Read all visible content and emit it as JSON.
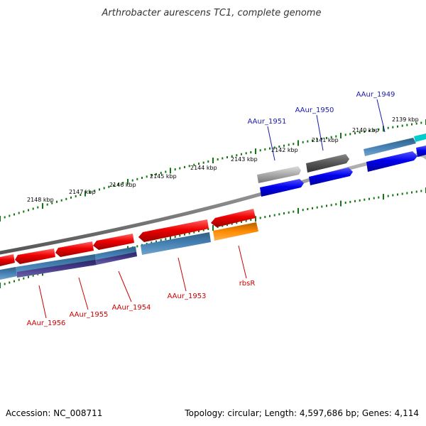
{
  "title": "Arthrobacter aurescens TC1, complete genome",
  "footer": {
    "accession": "Accession: NC_008711",
    "topology": "Topology: circular; Length: 4,597,686 bp; Genes: 4,114"
  },
  "ticks": [
    "2148 kbp",
    "2147 kbp",
    "2146 kbp",
    "2145 kbp",
    "2144 kbp",
    "2143 kbp",
    "2142 kbp",
    "2141 kbp",
    "2140 kbp",
    "2139 kbp"
  ],
  "labels": {
    "top": [
      "AAur_1951",
      "AAur_1950",
      "AAur_1949"
    ],
    "bottom": [
      "AAur_1956",
      "AAur_1955",
      "AAur_1954",
      "AAur_1953",
      "rbsR"
    ]
  },
  "colors": {
    "forward_cds": "#0000ee",
    "reverse_cds": "#ee0000",
    "forward_label": "#1a1aaa",
    "reverse_label": "#cc0000",
    "backbone": "#888888",
    "tick": "#117711",
    "steelblue": "#4682b4",
    "darkslate": "#483d8b",
    "orange": "#ff8c00",
    "grey_light": "#a9a9a9",
    "grey_dark": "#555555",
    "cyan": "#00cccc"
  }
}
